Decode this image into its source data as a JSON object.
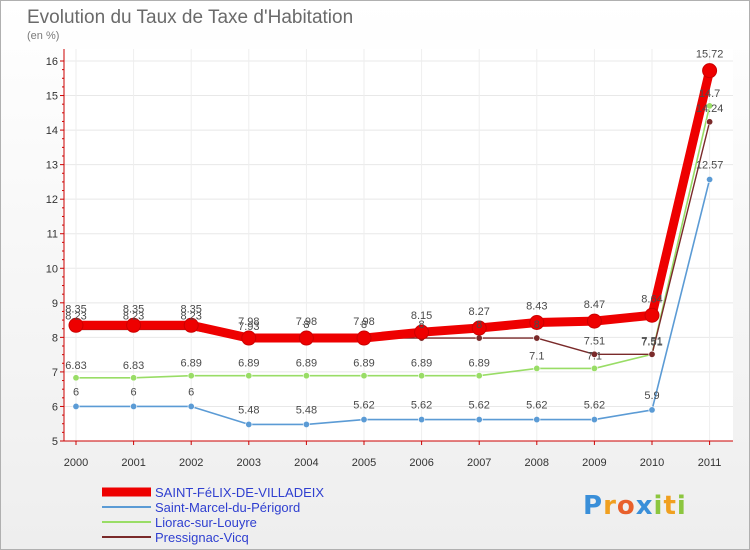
{
  "title": "Evolution du Taux de Taxe d'Habitation",
  "unit": "(en %)",
  "brand": "Proxiti",
  "chart_data": {
    "type": "line",
    "x": [
      "2000",
      "2001",
      "2002",
      "2003",
      "2004",
      "2005",
      "2006",
      "2007",
      "2008",
      "2009",
      "2010",
      "2011"
    ],
    "ylim": [
      5,
      16
    ],
    "yticks": [
      "5",
      "6",
      "7",
      "8",
      "9",
      "10",
      "11",
      "12",
      "13",
      "14",
      "15",
      "16"
    ],
    "series": [
      {
        "name": "SAINT-FéLIX-DE-VILLADEIX",
        "color": "#ee0000",
        "values": [
          8.35,
          8.35,
          8.35,
          7.98,
          7.98,
          7.98,
          8.15,
          8.27,
          8.43,
          8.47,
          8.64,
          15.72
        ],
        "labels": [
          "8.35",
          "8.35",
          "8.35",
          "7.98",
          "7.98",
          "7.98",
          "8.15",
          "8.27",
          "8.43",
          "8.47",
          "8.64",
          "15.72"
        ]
      },
      {
        "name": "Saint-Marcel-du-Périgord",
        "color": "#5b9bd5",
        "values": [
          6,
          6,
          6,
          5.48,
          5.48,
          5.62,
          5.62,
          5.62,
          5.62,
          5.62,
          5.9,
          12.57
        ],
        "labels": [
          "6",
          "6",
          "6",
          "5.48",
          "5.48",
          "5.62",
          "5.62",
          "5.62",
          "5.62",
          "5.62",
          "5.9",
          "12.57"
        ]
      },
      {
        "name": "Liorac-sur-Louyre",
        "color": "#99dd66",
        "values": [
          6.83,
          6.83,
          6.89,
          6.89,
          6.89,
          6.89,
          6.89,
          6.89,
          7.1,
          7.1,
          7.51,
          14.7
        ],
        "labels": [
          "6.83",
          "6.83",
          "6.89",
          "6.89",
          "6.89",
          "6.89",
          "6.89",
          "6.89",
          "7.1",
          "7.1",
          "7.51",
          "14.7"
        ]
      },
      {
        "name": "Pressignac-Vicq",
        "color": "#7a2a2a",
        "values": [
          8.23,
          8.23,
          8.23,
          7.93,
          7.98,
          7.98,
          7.98,
          7.98,
          7.98,
          7.51,
          7.51,
          14.24
        ],
        "labels": [
          "8.23",
          "8.23",
          "8.23",
          "7.93",
          "8",
          "8",
          "8",
          "8",
          "8",
          "7.51",
          "7.51",
          "14.24"
        ]
      }
    ]
  }
}
